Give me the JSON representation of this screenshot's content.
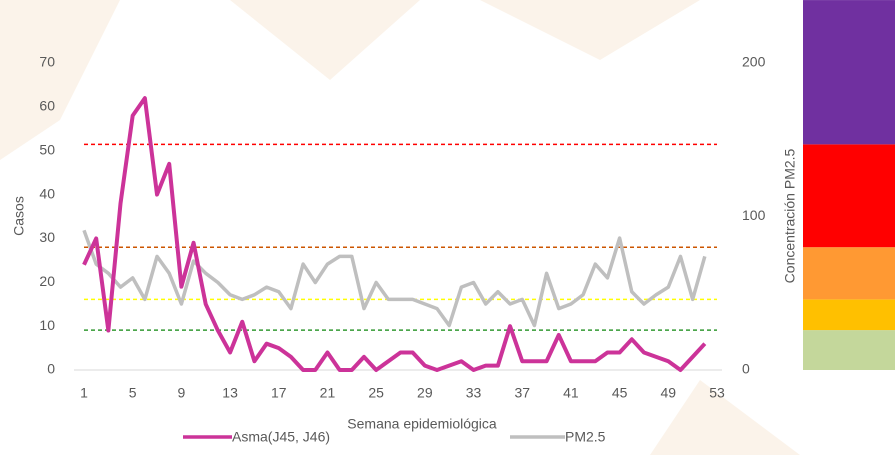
{
  "chart_data": {
    "type": "line",
    "x_label": "Semana epidemiológica",
    "y_label": "Casos",
    "y2_label": "Concentración PM2.5",
    "x": [
      1,
      2,
      3,
      4,
      5,
      6,
      7,
      8,
      9,
      10,
      11,
      12,
      13,
      14,
      15,
      16,
      17,
      18,
      19,
      20,
      21,
      22,
      23,
      24,
      25,
      26,
      27,
      28,
      29,
      30,
      31,
      32,
      33,
      34,
      35,
      36,
      37,
      38,
      39,
      40,
      41,
      42,
      43,
      44,
      45,
      46,
      47,
      48,
      49,
      50,
      51,
      52
    ],
    "xlim": [
      1,
      53
    ],
    "xticks": [
      1,
      5,
      9,
      13,
      17,
      21,
      25,
      29,
      33,
      37,
      41,
      45,
      49,
      53
    ],
    "ylim": [
      0,
      70
    ],
    "yticks": [
      0,
      10,
      20,
      30,
      40,
      50,
      60,
      70
    ],
    "y2lim": [
      0,
      200
    ],
    "y2ticks": [
      0,
      100,
      200
    ],
    "series": [
      {
        "name": "Asma(J45, J46)",
        "color": "#cc3399",
        "values": [
          24,
          30,
          9,
          38,
          58,
          62,
          40,
          47,
          19,
          29,
          15,
          9,
          4,
          11,
          2,
          6,
          5,
          3,
          0,
          0,
          4,
          0,
          0,
          3,
          0,
          2,
          4,
          4,
          1,
          0,
          1,
          2,
          0,
          1,
          1,
          10,
          2,
          2,
          2,
          8,
          2,
          2,
          2,
          4,
          4,
          7,
          4,
          3,
          2,
          0,
          3,
          6
        ]
      },
      {
        "name": "PM2.5",
        "color": "#bfbfbf",
        "axis": "y2",
        "values": [
          91,
          69,
          63,
          54,
          60,
          46,
          74,
          63,
          43,
          71,
          63,
          57,
          49,
          46,
          49,
          54,
          51,
          40,
          69,
          57,
          69,
          74,
          74,
          40,
          57,
          46,
          46,
          46,
          43,
          40,
          29,
          54,
          57,
          43,
          51,
          43,
          46,
          29,
          63,
          40,
          43,
          49,
          69,
          60,
          86,
          51,
          43,
          49,
          54,
          74,
          46,
          74
        ]
      }
    ],
    "bands": [
      {
        "max": 26,
        "color": "#c4d79b",
        "line_color": "#339933"
      },
      {
        "max": 46,
        "color": "#ffc000",
        "line_color": "#ffff00"
      },
      {
        "max": 80,
        "color": "#ff9933",
        "line_color": "#cc5500"
      },
      {
        "max": 147,
        "color": "#ff0000",
        "line_color": "#ff0000"
      },
      {
        "max": 241,
        "color": "#7030a0"
      }
    ]
  }
}
